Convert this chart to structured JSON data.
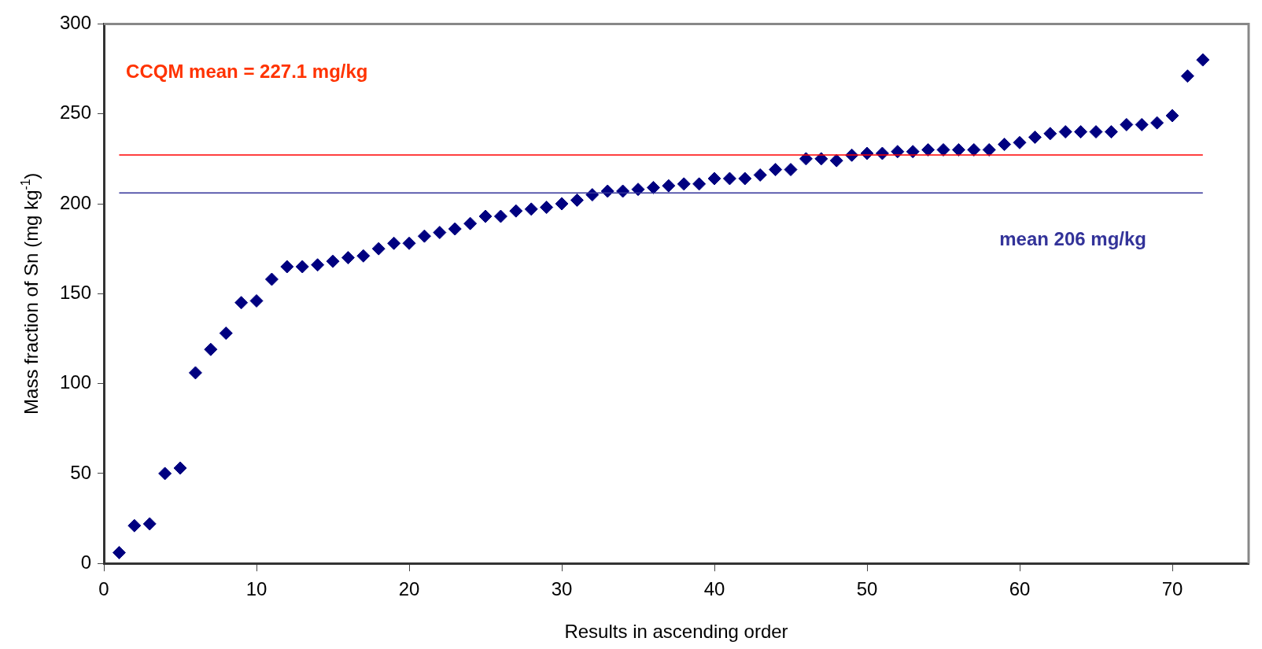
{
  "chart_data": {
    "type": "scatter",
    "xlabel": "Results in ascending order",
    "ylabel": "Mass fraction of Sn (mg kg$^{-1}$)",
    "x": [
      1,
      2,
      3,
      4,
      5,
      6,
      7,
      8,
      9,
      10,
      11,
      12,
      13,
      14,
      15,
      16,
      17,
      18,
      19,
      20,
      21,
      22,
      23,
      24,
      25,
      26,
      27,
      28,
      29,
      30,
      31,
      32,
      33,
      34,
      35,
      36,
      37,
      38,
      39,
      40,
      41,
      42,
      43,
      44,
      45,
      46,
      47,
      48,
      49,
      50,
      51,
      52,
      53,
      54,
      55,
      56,
      57,
      58,
      59,
      60,
      61,
      62,
      63,
      64,
      65,
      66,
      67,
      68,
      69,
      70,
      71,
      72
    ],
    "series": [
      {
        "color": "#000080",
        "values": [
          6,
          21,
          22,
          50,
          53,
          106,
          119,
          128,
          145,
          146,
          158,
          165,
          165,
          166,
          168,
          170,
          171,
          175,
          178,
          178,
          182,
          184,
          186,
          189,
          193,
          193,
          196,
          197,
          198,
          200,
          202,
          205,
          207,
          207,
          208,
          209,
          210,
          211,
          211,
          214,
          214,
          214,
          216,
          219,
          219,
          225,
          225,
          224,
          227,
          228,
          228,
          229,
          229,
          230,
          230,
          230,
          230,
          230,
          233,
          234,
          237,
          239,
          240,
          240,
          240,
          240,
          244,
          244,
          245,
          249,
          271,
          280
        ]
      }
    ],
    "marker": "diamond",
    "grid": false,
    "xlim": [
      0,
      75
    ],
    "xticks": [
      0,
      10,
      20,
      30,
      40,
      50,
      60,
      70
    ],
    "ylim": [
      0,
      300
    ],
    "yticks": [
      0,
      50,
      100,
      150,
      200,
      250,
      300
    ],
    "annotations": [
      "CCQM mean = 227.1 mg/kg"
    ],
    "ref_lines": [
      {
        "axis": "y",
        "value": 227.1,
        "color": "#ff0000"
      },
      {
        "axis": "y",
        "value": 206,
        "label": "mean 206 mg/kg",
        "color": "#333399"
      }
    ]
  }
}
